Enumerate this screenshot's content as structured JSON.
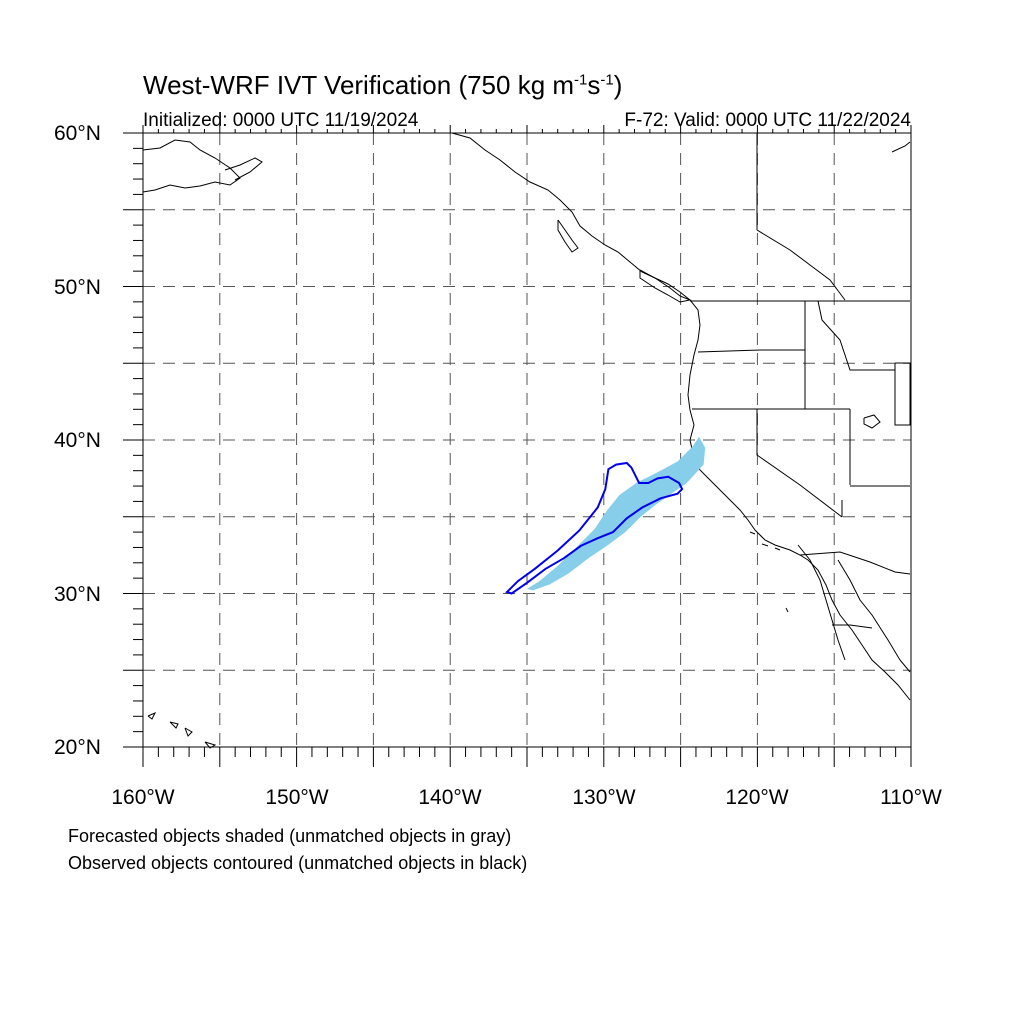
{
  "title": {
    "prefix": "West-WRF IVT Verification (750 kg m",
    "sup1": "-1",
    "mid": "s",
    "sup2": "-1",
    "suffix": ")"
  },
  "subtitle_left": "Initialized: 0000 UTC 11/19/2024",
  "subtitle_right": "F-72: Valid: 0000 UTC 11/22/2024",
  "lat_labels": [
    "60°N",
    "50°N",
    "40°N",
    "30°N",
    "20°N"
  ],
  "lon_labels": [
    "160°W",
    "150°W",
    "140°W",
    "130°W",
    "120°W",
    "110°W"
  ],
  "notes": [
    "Forecasted objects shaded (unmatched objects in gray)",
    "Observed objects contoured (unmatched objects in black)"
  ],
  "map": {
    "lon_range": [
      -160,
      -110
    ],
    "lat_range": [
      20,
      60
    ],
    "grid_lon_step": 5,
    "grid_lat_step": 5,
    "forecast_color": "#87ceeb",
    "observed_color": "#0000ee",
    "forecast_object": [
      [
        -135.0,
        30.3
      ],
      [
        -134.2,
        30.8
      ],
      [
        -133.0,
        31.8
      ],
      [
        -131.8,
        33.0
      ],
      [
        -130.6,
        34.2
      ],
      [
        -129.8,
        35.4
      ],
      [
        -129.0,
        36.4
      ],
      [
        -127.9,
        37.2
      ],
      [
        -126.5,
        37.9
      ],
      [
        -125.2,
        38.6
      ],
      [
        -124.2,
        39.6
      ],
      [
        -123.8,
        40.2
      ],
      [
        -123.4,
        39.5
      ],
      [
        -123.5,
        38.4
      ],
      [
        -124.6,
        37.2
      ],
      [
        -125.6,
        36.5
      ],
      [
        -126.6,
        35.8
      ],
      [
        -127.6,
        35.0
      ],
      [
        -128.6,
        34.0
      ],
      [
        -129.8,
        33.1
      ],
      [
        -131.0,
        32.3
      ],
      [
        -132.3,
        31.3
      ],
      [
        -133.5,
        30.6
      ],
      [
        -134.6,
        30.2
      ]
    ],
    "observed_object": [
      [
        -136.3,
        30.1
      ],
      [
        -135.6,
        30.8
      ],
      [
        -134.5,
        31.6
      ],
      [
        -133.0,
        32.8
      ],
      [
        -131.6,
        34.1
      ],
      [
        -130.4,
        35.6
      ],
      [
        -129.9,
        36.8
      ],
      [
        -129.7,
        38.1
      ],
      [
        -129.2,
        38.4
      ],
      [
        -128.5,
        38.5
      ],
      [
        -128.2,
        38.2
      ],
      [
        -127.7,
        37.2
      ],
      [
        -127.1,
        37.2
      ],
      [
        -126.5,
        37.5
      ],
      [
        -125.8,
        37.6
      ],
      [
        -125.1,
        37.2
      ],
      [
        -124.9,
        36.8
      ],
      [
        -125.2,
        36.5
      ],
      [
        -126.3,
        36.2
      ],
      [
        -127.5,
        35.6
      ],
      [
        -128.5,
        34.9
      ],
      [
        -129.4,
        34.0
      ],
      [
        -130.4,
        33.6
      ],
      [
        -131.5,
        33.1
      ],
      [
        -132.6,
        32.3
      ],
      [
        -133.8,
        31.6
      ],
      [
        -135.0,
        30.7
      ],
      [
        -136.0,
        30.0
      ]
    ]
  }
}
